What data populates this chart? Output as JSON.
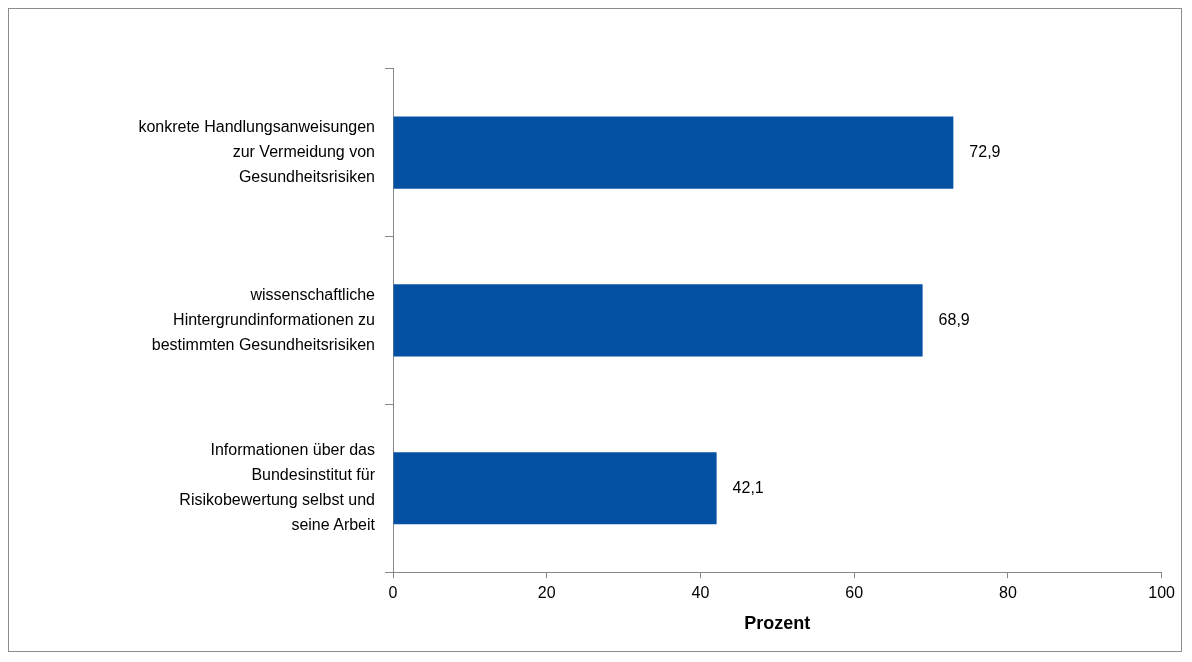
{
  "chart_data": {
    "type": "bar",
    "orientation": "horizontal",
    "categories": [
      "konkrete Handlungsanweisungen zur Vermeidung von Gesundheitsrisiken",
      "wissenschaftliche Hintergrundinformationen zu bestimmten Gesundheitsrisiken",
      "Informationen über das Bundesinstitut für Risikobewertung selbst und seine Arbeit"
    ],
    "values": [
      72.9,
      68.9,
      42.1
    ],
    "value_labels": [
      "72,9",
      "68,9",
      "42,1"
    ],
    "color": "#0450a3",
    "xlim": [
      0,
      100
    ],
    "xticks": [
      0,
      20,
      40,
      60,
      80,
      100
    ],
    "xlabel": "Prozent",
    "grid": false,
    "legend": false
  }
}
